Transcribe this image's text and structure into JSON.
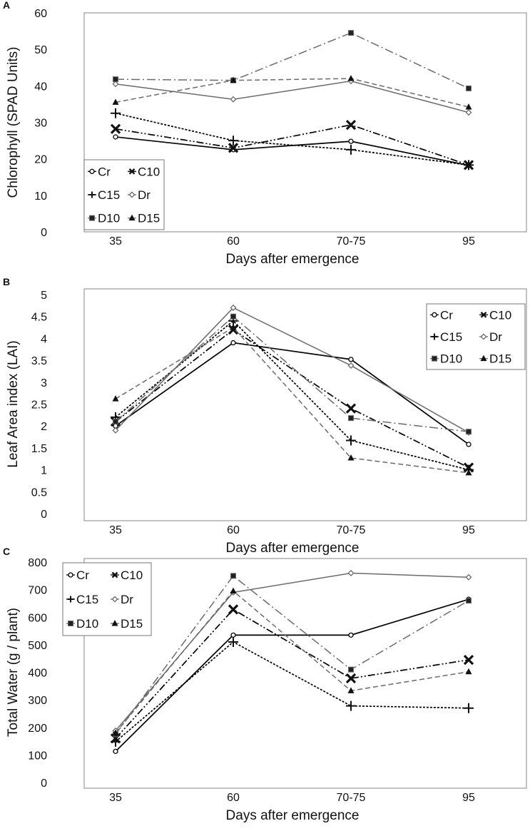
{
  "chart_data": [
    {
      "panel": "A",
      "type": "line",
      "xlabel": "Days after emergence",
      "ylabel": "Chlorophyll (SPAD Units)",
      "categories": [
        "35",
        "60",
        "70-75",
        "95"
      ],
      "ylim": [
        0,
        60
      ],
      "yticks": [
        "0",
        "10",
        "20",
        "30",
        "40",
        "50",
        "60"
      ],
      "legend_position": "bottom-left",
      "series": [
        {
          "name": "Cr",
          "values": [
            26.0,
            22.5,
            24.8,
            18.2
          ]
        },
        {
          "name": "C10",
          "values": [
            28.2,
            23.0,
            29.3,
            18.3
          ]
        },
        {
          "name": "C15",
          "values": [
            32.5,
            25.0,
            22.5,
            18.3
          ]
        },
        {
          "name": "Dr",
          "values": [
            40.5,
            36.3,
            41.3,
            32.7
          ]
        },
        {
          "name": "D10",
          "values": [
            41.8,
            41.5,
            54.5,
            39.3
          ]
        },
        {
          "name": "D15",
          "values": [
            35.5,
            41.5,
            42.0,
            34.2
          ]
        }
      ]
    },
    {
      "panel": "B",
      "type": "line",
      "xlabel": "Days after emergence",
      "ylabel": "Leaf Area index (LAI)",
      "categories": [
        "35",
        "60",
        "70-75",
        "95"
      ],
      "ylim": [
        0,
        5
      ],
      "yticks": [
        "0",
        "0.5",
        "1",
        "1.5",
        "2",
        "2.5",
        "3",
        "3.5",
        "4",
        "4.5",
        "5"
      ],
      "legend_position": "top-right",
      "series": [
        {
          "name": "Cr",
          "values": [
            2.0,
            3.9,
            3.52,
            1.58
          ]
        },
        {
          "name": "C10",
          "values": [
            2.1,
            4.2,
            2.4,
            1.05
          ]
        },
        {
          "name": "C15",
          "values": [
            2.2,
            4.4,
            1.67,
            1.0
          ]
        },
        {
          "name": "Dr",
          "values": [
            1.9,
            4.7,
            3.38,
            1.85
          ]
        },
        {
          "name": "D10",
          "values": [
            2.1,
            4.5,
            2.18,
            1.87
          ]
        },
        {
          "name": "D15",
          "values": [
            2.62,
            4.25,
            1.27,
            0.93
          ]
        }
      ]
    },
    {
      "panel": "C",
      "type": "line",
      "xlabel": "Days after emergence",
      "ylabel": "Total Water  (g / plant)",
      "categories": [
        "35",
        "60",
        "70-75",
        "95"
      ],
      "ylim": [
        0,
        800
      ],
      "yticks": [
        "0",
        "100",
        "200",
        "300",
        "400",
        "500",
        "600",
        "700",
        "800"
      ],
      "legend_position": "top-left",
      "series": [
        {
          "name": "Cr",
          "values": [
            113,
            535,
            535,
            665
          ]
        },
        {
          "name": "C10",
          "values": [
            160,
            628,
            378,
            445
          ]
        },
        {
          "name": "C15",
          "values": [
            148,
            510,
            278,
            270
          ]
        },
        {
          "name": "Dr",
          "values": [
            188,
            690,
            760,
            745
          ]
        },
        {
          "name": "D10",
          "values": [
            175,
            750,
            410,
            660
          ]
        },
        {
          "name": "D15",
          "values": [
            180,
            695,
            333,
            402
          ]
        }
      ]
    }
  ],
  "styles": {
    "Cr": {
      "color": "#000000",
      "dash": "",
      "marker": "circle"
    },
    "C10": {
      "color": "#000000",
      "dash": "10,3,2,3,2,3",
      "marker": "x"
    },
    "C15": {
      "color": "#000000",
      "dash": "3,2",
      "marker": "plus"
    },
    "Dr": {
      "color": "#6b6b6b",
      "dash": "",
      "marker": "diamond"
    },
    "D10": {
      "color": "#6b6b6b",
      "dash": "12,4,2,4",
      "marker": "square"
    },
    "D15": {
      "color": "#6b6b6b",
      "dash": "7,4",
      "marker": "triangle"
    }
  }
}
